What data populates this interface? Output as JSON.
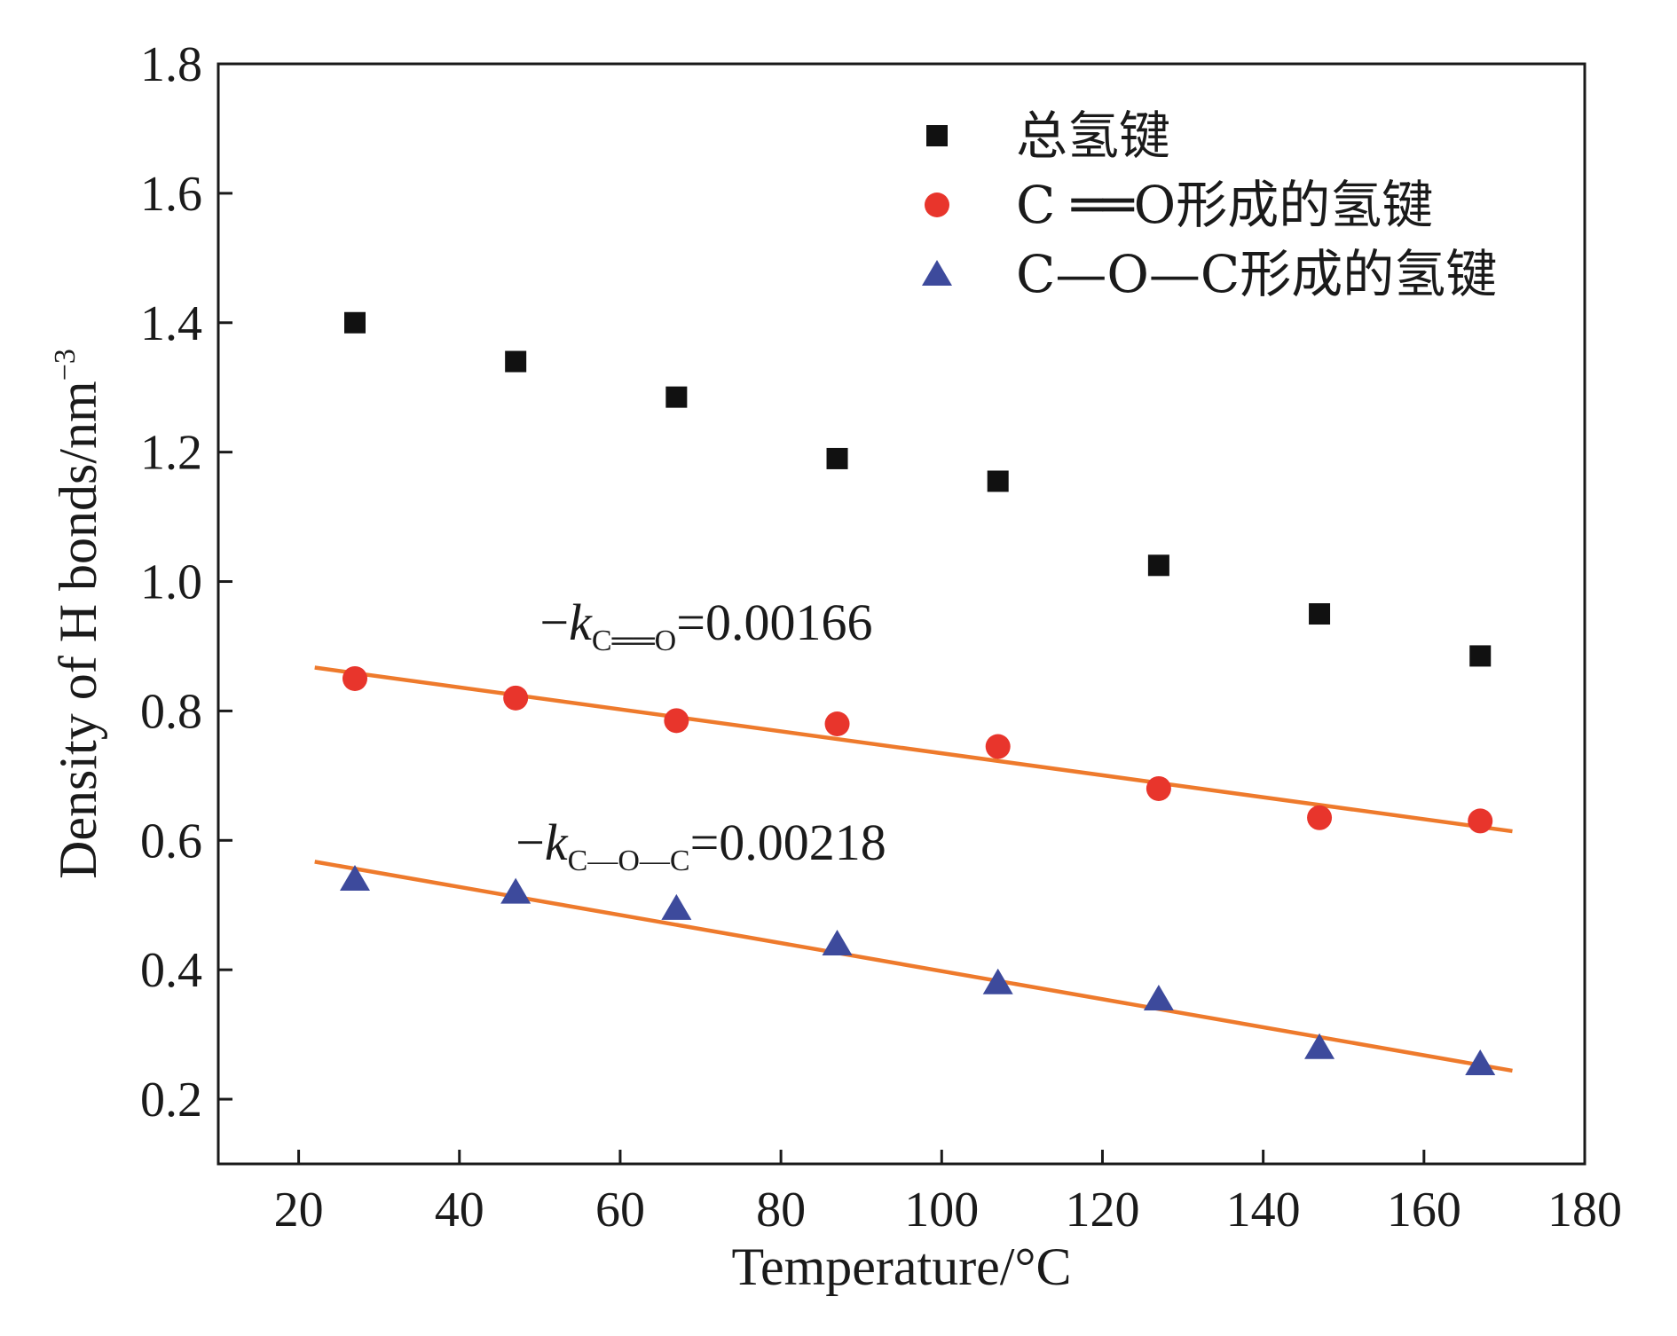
{
  "chart_data": {
    "type": "scatter",
    "title": "",
    "xlabel": "Temperature/°C",
    "ylabel_main": "Density of  H bonds/nm",
    "ylabel_sup": "−3",
    "xlim": [
      10,
      180
    ],
    "ylim": [
      0.1,
      1.8
    ],
    "xticks": [
      20,
      40,
      60,
      80,
      100,
      120,
      140,
      160,
      180
    ],
    "yticks": [
      0.2,
      0.4,
      0.6,
      0.8,
      1.0,
      1.2,
      1.4,
      1.6,
      1.8
    ],
    "ytick_labels": [
      "0.2",
      "0.4",
      "0.6",
      "0.8",
      "1.0",
      "1.2",
      "1.4",
      "1.6",
      "1.8"
    ],
    "legend_position": "top-right",
    "series": [
      {
        "name": "总氢键",
        "marker": "square",
        "color": "#111111",
        "x": [
          27,
          47,
          67,
          87,
          107,
          127,
          147,
          167
        ],
        "y": [
          1.4,
          1.34,
          1.285,
          1.19,
          1.155,
          1.025,
          0.95,
          0.885
        ]
      },
      {
        "name": "C ══O形成的氢键",
        "marker": "circle",
        "color": "#e8352c",
        "x": [
          27,
          47,
          67,
          87,
          107,
          127,
          147,
          167
        ],
        "y": [
          0.85,
          0.82,
          0.785,
          0.78,
          0.745,
          0.68,
          0.635,
          0.63
        ]
      },
      {
        "name": "C—O—C形成的氢键",
        "marker": "triangle",
        "color": "#3d4a9c",
        "x": [
          27,
          47,
          67,
          87,
          107,
          127,
          147,
          167
        ],
        "y": [
          0.54,
          0.52,
          0.495,
          0.44,
          0.38,
          0.355,
          0.28,
          0.255
        ]
      }
    ],
    "fit_lines": [
      {
        "series": "C ══O形成的氢键",
        "color": "#ee7a2c",
        "x": [
          22,
          171
        ],
        "y": [
          0.867,
          0.614
        ]
      },
      {
        "series": "C—O—C形成的氢键",
        "color": "#ee7a2c",
        "x": [
          22,
          171
        ],
        "y": [
          0.567,
          0.244
        ]
      }
    ],
    "annotations": [
      {
        "prefix": "−",
        "k": "k",
        "sub": "C══O",
        "value": "=0.00166",
        "x": 50,
        "y": 0.91
      },
      {
        "prefix": "−",
        "k": "k",
        "sub": "C—O—C",
        "value": "=0.00218",
        "x": 47,
        "y": 0.57
      }
    ]
  }
}
